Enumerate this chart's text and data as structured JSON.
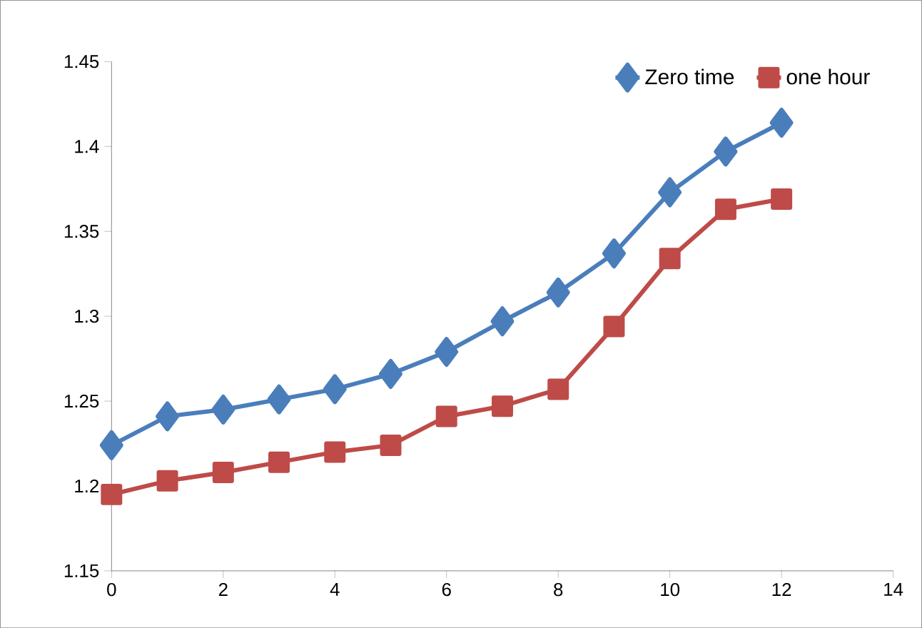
{
  "chart_data": {
    "type": "line",
    "x": [
      0,
      1,
      2,
      3,
      4,
      5,
      6,
      7,
      8,
      9,
      10,
      11,
      12
    ],
    "series": [
      {
        "name": "Zero time",
        "color": "#4a7ebb",
        "marker": "diamond",
        "values": [
          1.224,
          1.241,
          1.245,
          1.251,
          1.257,
          1.266,
          1.279,
          1.297,
          1.314,
          1.337,
          1.373,
          1.397,
          1.414
        ]
      },
      {
        "name": "one hour",
        "color": "#be4b48",
        "marker": "square",
        "values": [
          1.195,
          1.203,
          1.208,
          1.214,
          1.22,
          1.224,
          1.241,
          1.247,
          1.257,
          1.294,
          1.334,
          1.363,
          1.369
        ]
      }
    ],
    "xlim": [
      0,
      14
    ],
    "xticks": [
      0,
      2,
      4,
      6,
      8,
      10,
      12,
      14
    ],
    "ylim": [
      1.15,
      1.45
    ],
    "yticks": [
      1.15,
      1.2,
      1.25,
      1.3,
      1.35,
      1.4,
      1.45
    ],
    "grid": false,
    "legend": "top right",
    "line_style": "solid"
  }
}
